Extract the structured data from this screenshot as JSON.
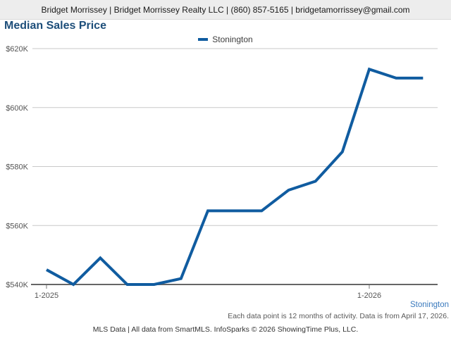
{
  "header": {
    "contact_line": "Bridget Morrissey | Bridget Morrissey Realty LLC | (860) 857-5165 | bridgetamorrissey@gmail.com"
  },
  "title": "Median Sales Price",
  "legend": {
    "label": "Stonington"
  },
  "chart_data": {
    "type": "line",
    "title": "Median Sales Price",
    "categories": [
      "1-2025",
      "2-2025",
      "3-2025",
      "4-2025",
      "5-2025",
      "6-2025",
      "7-2025",
      "8-2025",
      "9-2025",
      "10-2025",
      "11-2025",
      "12-2025",
      "1-2026",
      "2-2026",
      "3-2026"
    ],
    "series": [
      {
        "name": "Stonington",
        "color": "#105ca0",
        "values": [
          545000,
          540000,
          549000,
          540000,
          540000,
          542000,
          565000,
          565000,
          565000,
          572000,
          575000,
          585000,
          613000,
          610000,
          610000
        ]
      }
    ],
    "ylim": [
      540000,
      620000
    ],
    "y_tick_step": 20000,
    "y_tick_labels": [
      "$540K",
      "$560K",
      "$580K",
      "$600K",
      "$620K"
    ],
    "x_ticks": [
      {
        "label": "1-2025",
        "index": 0
      },
      {
        "label": "1-2026",
        "index": 12
      }
    ],
    "grid": "horizontal",
    "legend_position": "top-center"
  },
  "footer": {
    "series_label": "Stonington",
    "footnote": "Each data point is 12 months of activity. Data is from April 17, 2026.",
    "attribution": "MLS Data | All data from SmartMLS. InfoSparks © 2026 ShowingTime Plus, LLC."
  },
  "colors": {
    "line": "#105ca0",
    "title_text": "#1d4e7a",
    "header_background": "#ededed",
    "gridline": "#c9c9c9",
    "axis_line": "#666666",
    "axis_label": "#555555",
    "footer_series_text": "#3a7abd",
    "footnote_text": "#595959"
  }
}
